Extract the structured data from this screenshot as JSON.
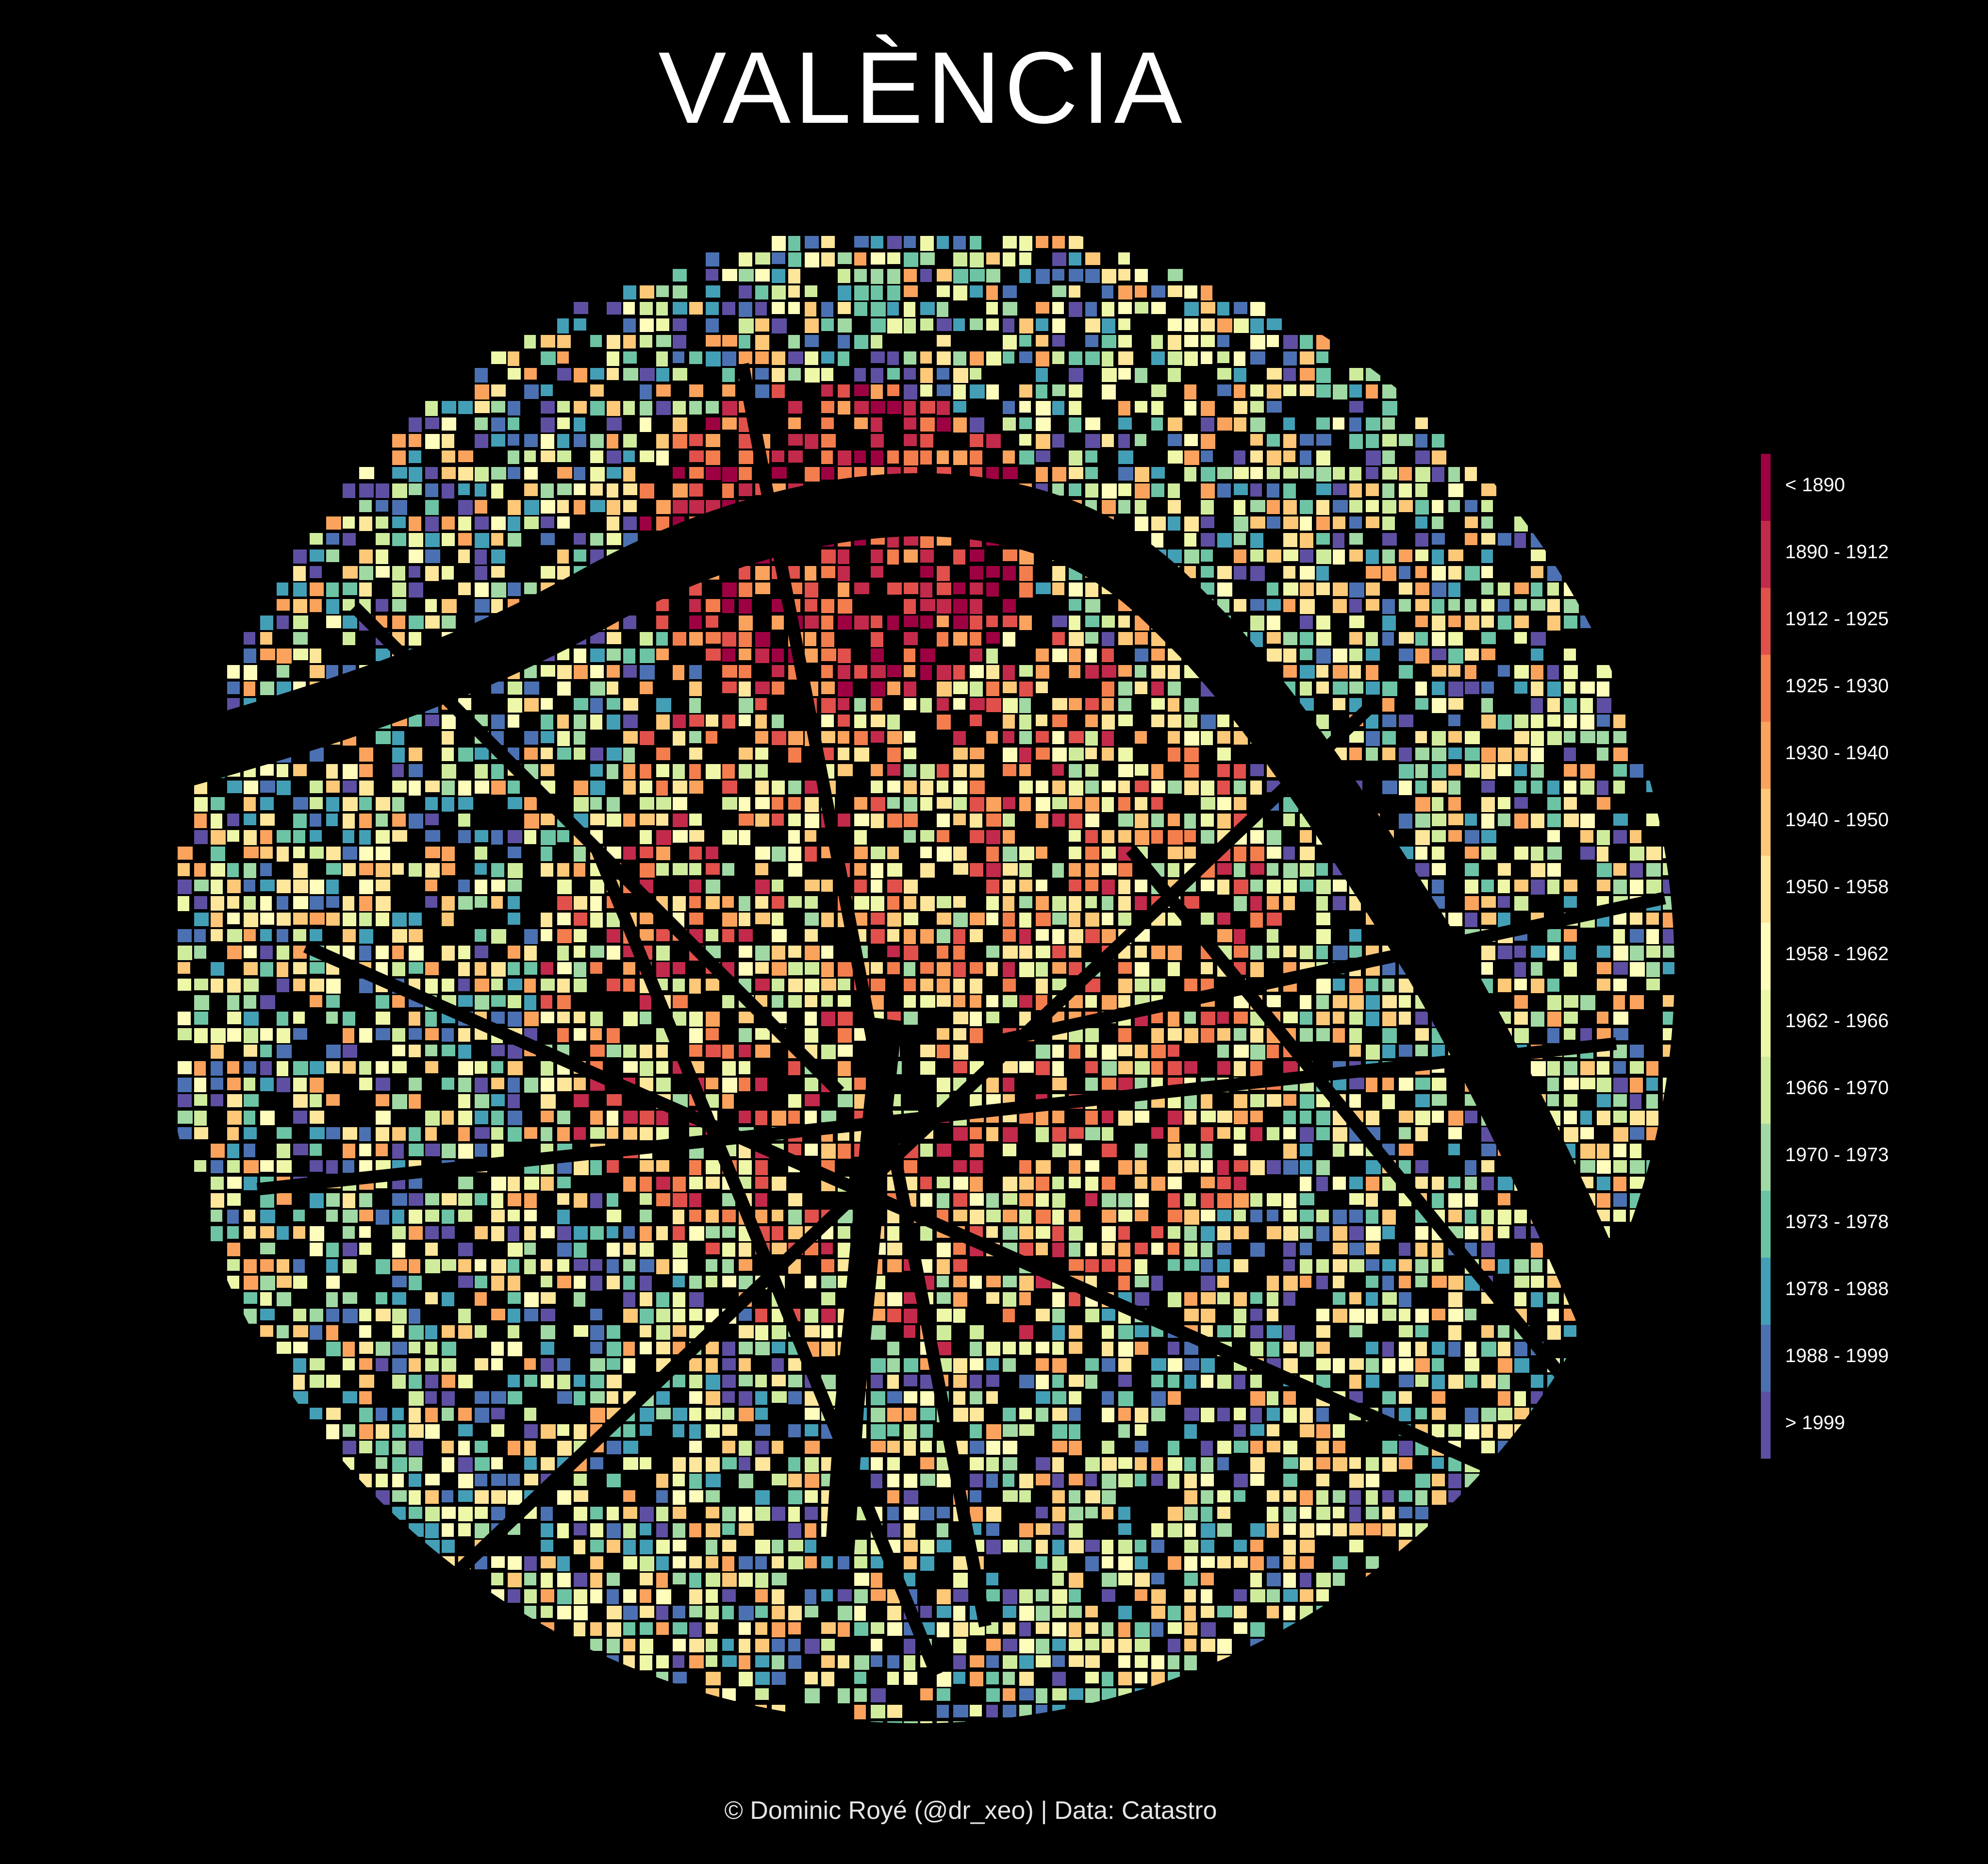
{
  "title": "VALÈNCIA",
  "caption": "© Dominic Royé (@dr_xeo) | Data: Catastro",
  "legend": [
    {
      "label": "< 1890",
      "color": "#9e0142"
    },
    {
      "label": "1890 - 1912",
      "color": "#c2294a"
    },
    {
      "label": "1912 - 1925",
      "color": "#e1504b"
    },
    {
      "label": "1925 - 1930",
      "color": "#f47d4d"
    },
    {
      "label": "1930 - 1940",
      "color": "#fba35c"
    },
    {
      "label": "1940 - 1950",
      "color": "#fdc877"
    },
    {
      "label": "1950 - 1958",
      "color": "#fee69a"
    },
    {
      "label": "1958 - 1962",
      "color": "#fffdbc"
    },
    {
      "label": "1962 - 1966",
      "color": "#eef8a8"
    },
    {
      "label": "1966 - 1970",
      "color": "#cfec9d"
    },
    {
      "label": "1970 - 1973",
      "color": "#a0d9a3"
    },
    {
      "label": "1973 - 1978",
      "color": "#6cc4a5"
    },
    {
      "label": "1978 - 1988",
      "color": "#439fb6"
    },
    {
      "label": "1988 - 1999",
      "color": "#4b71b2"
    },
    {
      "label": "> 1999",
      "color": "#5e4fa2"
    }
  ]
}
